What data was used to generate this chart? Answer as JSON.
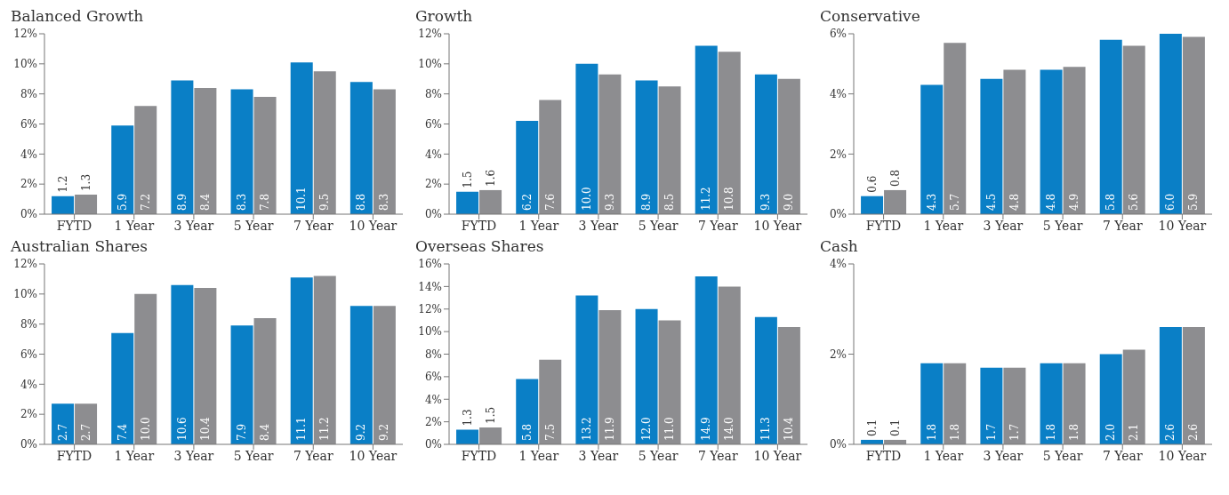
{
  "chart_data": [
    {
      "type": "bar",
      "title": "Balanced Growth",
      "categories": [
        "FYTD",
        "1 Year",
        "3 Year",
        "5 Year",
        "7 Year",
        "10 Year"
      ],
      "series": [
        {
          "color": "#0a7fc6",
          "values": [
            1.2,
            5.9,
            8.9,
            8.3,
            10.1,
            8.8
          ],
          "value_labels": [
            "1.2",
            "5.9",
            "8.9",
            "8.3",
            "10.1",
            "8.8"
          ]
        },
        {
          "color": "#8d8d90",
          "values": [
            1.3,
            7.2,
            8.4,
            7.8,
            9.5,
            8.3
          ],
          "value_labels": [
            "1.3",
            "7.2",
            "8.4",
            "7.8",
            "9.5",
            "8.3"
          ]
        }
      ],
      "ylim": [
        0,
        12
      ],
      "yticks": [
        {
          "value": 0,
          "label": "0%"
        },
        {
          "value": 2,
          "label": "2%"
        },
        {
          "value": 4,
          "label": "4%"
        },
        {
          "value": 6,
          "label": "6%"
        },
        {
          "value": 8,
          "label": "8%"
        },
        {
          "value": 10,
          "label": "10%"
        },
        {
          "value": 12,
          "label": "12%"
        }
      ]
    },
    {
      "type": "bar",
      "title": "Growth",
      "categories": [
        "FYTD",
        "1 Year",
        "3 Year",
        "5 Year",
        "7 Year",
        "10 Year"
      ],
      "series": [
        {
          "color": "#0a7fc6",
          "values": [
            1.5,
            6.2,
            10.0,
            8.9,
            11.2,
            9.3
          ],
          "value_labels": [
            "1.5",
            "6.2",
            "10.0",
            "8.9",
            "11.2",
            "9.3"
          ]
        },
        {
          "color": "#8d8d90",
          "values": [
            1.6,
            7.6,
            9.3,
            8.5,
            10.8,
            9.0
          ],
          "value_labels": [
            "1.6",
            "7.6",
            "9.3",
            "8.5",
            "10.8",
            "9.0"
          ]
        }
      ],
      "ylim": [
        0,
        12
      ],
      "yticks": [
        {
          "value": 0,
          "label": "0%"
        },
        {
          "value": 2,
          "label": "2%"
        },
        {
          "value": 4,
          "label": "4%"
        },
        {
          "value": 6,
          "label": "6%"
        },
        {
          "value": 8,
          "label": "8%"
        },
        {
          "value": 10,
          "label": "10%"
        },
        {
          "value": 12,
          "label": "12%"
        }
      ]
    },
    {
      "type": "bar",
      "title": "Conservative",
      "categories": [
        "FYTD",
        "1 Year",
        "3 Year",
        "5 Year",
        "7 Year",
        "10 Year"
      ],
      "series": [
        {
          "color": "#0a7fc6",
          "values": [
            0.6,
            4.3,
            4.5,
            4.8,
            5.8,
            6.0
          ],
          "value_labels": [
            "0.6",
            "4.3",
            "4.5",
            "4.8",
            "5.8",
            "6.0"
          ]
        },
        {
          "color": "#8d8d90",
          "values": [
            0.8,
            5.7,
            4.8,
            4.9,
            5.6,
            5.9
          ],
          "value_labels": [
            "0.8",
            "5.7",
            "4.8",
            "4.9",
            "5.6",
            "5.9"
          ]
        }
      ],
      "ylim": [
        0,
        6
      ],
      "yticks": [
        {
          "value": 0,
          "label": "0%"
        },
        {
          "value": 2,
          "label": "2%"
        },
        {
          "value": 4,
          "label": "4%"
        },
        {
          "value": 6,
          "label": "6%"
        }
      ]
    },
    {
      "type": "bar",
      "title": "Australian Shares",
      "categories": [
        "FYTD",
        "1 Year",
        "3 Year",
        "5 Year",
        "7 Year",
        "10 Year"
      ],
      "series": [
        {
          "color": "#0a7fc6",
          "values": [
            2.7,
            7.4,
            10.6,
            7.9,
            11.1,
            9.2
          ],
          "value_labels": [
            "2.7",
            "7.4",
            "10.6",
            "7.9",
            "11.1",
            "9.2"
          ]
        },
        {
          "color": "#8d8d90",
          "values": [
            2.7,
            10.0,
            10.4,
            8.4,
            11.2,
            9.2
          ],
          "value_labels": [
            "2.7",
            "10.0",
            "10.4",
            "8.4",
            "11.2",
            "9.2"
          ]
        }
      ],
      "ylim": [
        0,
        12
      ],
      "yticks": [
        {
          "value": 0,
          "label": "0%"
        },
        {
          "value": 2,
          "label": "2%"
        },
        {
          "value": 4,
          "label": "4%"
        },
        {
          "value": 6,
          "label": "6%"
        },
        {
          "value": 8,
          "label": "8%"
        },
        {
          "value": 10,
          "label": "10%"
        },
        {
          "value": 12,
          "label": "12%"
        }
      ]
    },
    {
      "type": "bar",
      "title": "Overseas Shares",
      "categories": [
        "FYTD",
        "1 Year",
        "3 Year",
        "5 Year",
        "7 Year",
        "10 Year"
      ],
      "series": [
        {
          "color": "#0a7fc6",
          "values": [
            1.3,
            5.8,
            13.2,
            12.0,
            14.9,
            11.3
          ],
          "value_labels": [
            "1.3",
            "5.8",
            "13.2",
            "12.0",
            "14.9",
            "11.3"
          ]
        },
        {
          "color": "#8d8d90",
          "values": [
            1.5,
            7.5,
            11.9,
            11.0,
            14.0,
            10.4
          ],
          "value_labels": [
            "1.5",
            "7.5",
            "11.9",
            "11.0",
            "14.0",
            "10.4"
          ]
        }
      ],
      "ylim": [
        0,
        16
      ],
      "yticks": [
        {
          "value": 0,
          "label": "0%"
        },
        {
          "value": 2,
          "label": "2%"
        },
        {
          "value": 4,
          "label": "4%"
        },
        {
          "value": 6,
          "label": "6%"
        },
        {
          "value": 8,
          "label": "8%"
        },
        {
          "value": 10,
          "label": "10%"
        },
        {
          "value": 12,
          "label": "12%"
        },
        {
          "value": 14,
          "label": "14%"
        },
        {
          "value": 16,
          "label": "16%"
        }
      ]
    },
    {
      "type": "bar",
      "title": "Cash",
      "categories": [
        "FYTD",
        "1 Year",
        "3 Year",
        "5 Year",
        "7 Year",
        "10 Year"
      ],
      "series": [
        {
          "color": "#0a7fc6",
          "values": [
            0.1,
            1.8,
            1.7,
            1.8,
            2.0,
            2.6
          ],
          "value_labels": [
            "0.1",
            "1.8",
            "1.7",
            "1.8",
            "2.0",
            "2.6"
          ]
        },
        {
          "color": "#8d8d90",
          "values": [
            0.1,
            1.8,
            1.7,
            1.8,
            2.1,
            2.6
          ],
          "value_labels": [
            "0.1",
            "1.8",
            "1.7",
            "1.8",
            "2.1",
            "2.6"
          ]
        }
      ],
      "ylim": [
        0,
        4
      ],
      "yticks": [
        {
          "value": 0,
          "label": "0%"
        },
        {
          "value": 2,
          "label": "2%"
        },
        {
          "value": 4,
          "label": "4%"
        }
      ]
    }
  ]
}
